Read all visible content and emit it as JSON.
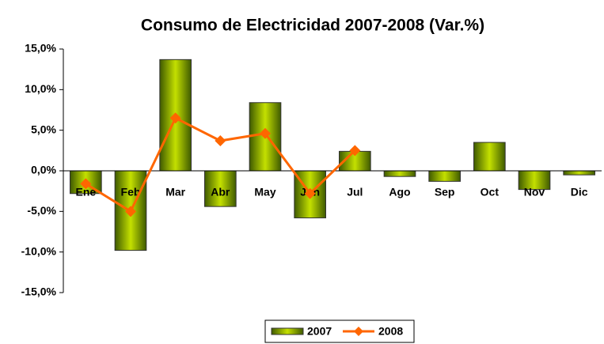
{
  "chart_data": {
    "type": "bar",
    "title": "Consumo de Electricidad 2007-2008 (Var.%)",
    "categories": [
      "Ene",
      "Feb",
      "Mar",
      "Abr",
      "May",
      "Jun",
      "Jul",
      "Ago",
      "Sep",
      "Oct",
      "Nov",
      "Dic"
    ],
    "series": [
      {
        "name": "2007",
        "type": "bar",
        "color": "#7a9a00",
        "values": [
          -2.8,
          -9.8,
          13.7,
          -4.4,
          8.4,
          -5.8,
          2.4,
          -0.7,
          -1.3,
          3.5,
          -2.3,
          -0.5
        ]
      },
      {
        "name": "2008",
        "type": "line",
        "color": "#ff6600",
        "values": [
          -1.6,
          -5.0,
          6.5,
          3.7,
          4.6,
          -2.8,
          2.5,
          null,
          null,
          null,
          null,
          null
        ]
      }
    ],
    "ylim": [
      -15,
      15
    ],
    "yticks": [
      {
        "value": -15,
        "label": "-15,0%"
      },
      {
        "value": -10,
        "label": "-10,0%"
      },
      {
        "value": -5,
        "label": "-5,0%"
      },
      {
        "value": 0,
        "label": "0,0%"
      },
      {
        "value": 5,
        "label": "5,0%"
      },
      {
        "value": 10,
        "label": "10,0%"
      },
      {
        "value": 15,
        "label": "15,0%"
      }
    ],
    "legend": "bottom"
  }
}
